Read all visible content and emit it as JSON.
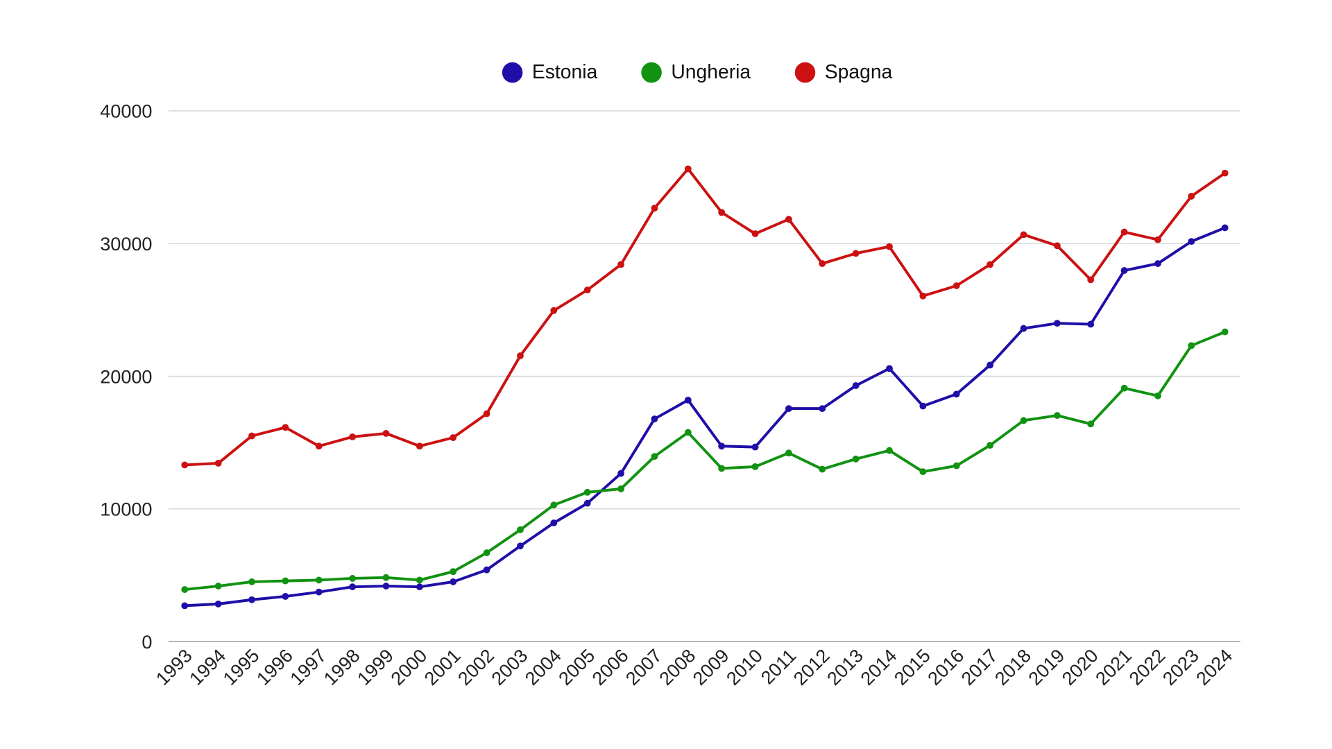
{
  "chart_data": {
    "type": "line",
    "title": "",
    "xlabel": "",
    "ylabel": "",
    "ylim": [
      0,
      40000
    ],
    "yticks": [
      "0",
      "10000",
      "20000",
      "30000",
      "40000"
    ],
    "grid": true,
    "legend_position": "top-center",
    "categories": [
      "1993",
      "1994",
      "1995",
      "1996",
      "1997",
      "1998",
      "1999",
      "2000",
      "2001",
      "2002",
      "2003",
      "2004",
      "2005",
      "2006",
      "2007",
      "2008",
      "2009",
      "2010",
      "2011",
      "2012",
      "2013",
      "2014",
      "2015",
      "2016",
      "2017",
      "2018",
      "2019",
      "2020",
      "2021",
      "2022",
      "2023",
      "2024"
    ],
    "series": [
      {
        "name": "Estonia",
        "color": "#1f0fa8",
        "values": [
          2700,
          2830,
          3150,
          3400,
          3730,
          4120,
          4180,
          4120,
          4500,
          5400,
          7200,
          8940,
          10420,
          12670,
          16780,
          18200,
          14730,
          14660,
          17560,
          17560,
          19290,
          20580,
          17750,
          18650,
          20840,
          23600,
          23990,
          23920,
          27970,
          28490,
          30160,
          31190
        ]
      },
      {
        "name": "Ungheria",
        "color": "#119211",
        "values": [
          3920,
          4180,
          4500,
          4570,
          4630,
          4760,
          4820,
          4630,
          5270,
          6690,
          8420,
          10290,
          11250,
          11510,
          13950,
          15760,
          13050,
          13180,
          14210,
          12990,
          13760,
          14400,
          12800,
          13250,
          14790,
          16660,
          17040,
          16400,
          19100,
          18520,
          22310,
          23340
        ]
      },
      {
        "name": "Spagna",
        "color": "#cc1111",
        "values": [
          13310,
          13440,
          15500,
          16140,
          14730,
          15430,
          15690,
          14730,
          15370,
          17170,
          21540,
          24950,
          26500,
          28420,
          32670,
          35630,
          32350,
          30740,
          31830,
          28490,
          29260,
          29770,
          26050,
          26820,
          28420,
          30670,
          29840,
          27270,
          30870,
          30290,
          33570,
          35310
        ]
      }
    ]
  }
}
